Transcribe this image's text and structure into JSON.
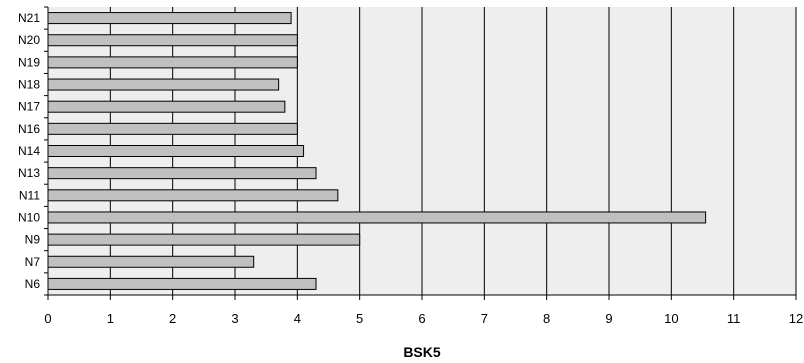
{
  "chart_data": {
    "type": "bar",
    "orientation": "horizontal",
    "categories": [
      "N21",
      "N20",
      "N19",
      "N18",
      "N17",
      "N16",
      "N14",
      "N13",
      "N11",
      "N10",
      "N9",
      "N7",
      "N6"
    ],
    "values": [
      3.9,
      4.0,
      4.0,
      3.7,
      3.8,
      4.0,
      4.1,
      4.3,
      4.65,
      10.55,
      5.0,
      3.3,
      4.3
    ],
    "xlabel": "BSK5",
    "ylabel": "",
    "title": "",
    "xlim": [
      0,
      12
    ],
    "xticks": [
      "0",
      "1",
      "2",
      "3",
      "4",
      "5",
      "6",
      "7",
      "8",
      "9",
      "10",
      "11",
      "12"
    ],
    "grid": "vertical",
    "legend": "none",
    "colors": {
      "bar_fill": "#c0c0c0",
      "bar_stroke": "#000000",
      "plot_background": "#eeeeee",
      "gridline": "#000000"
    }
  }
}
